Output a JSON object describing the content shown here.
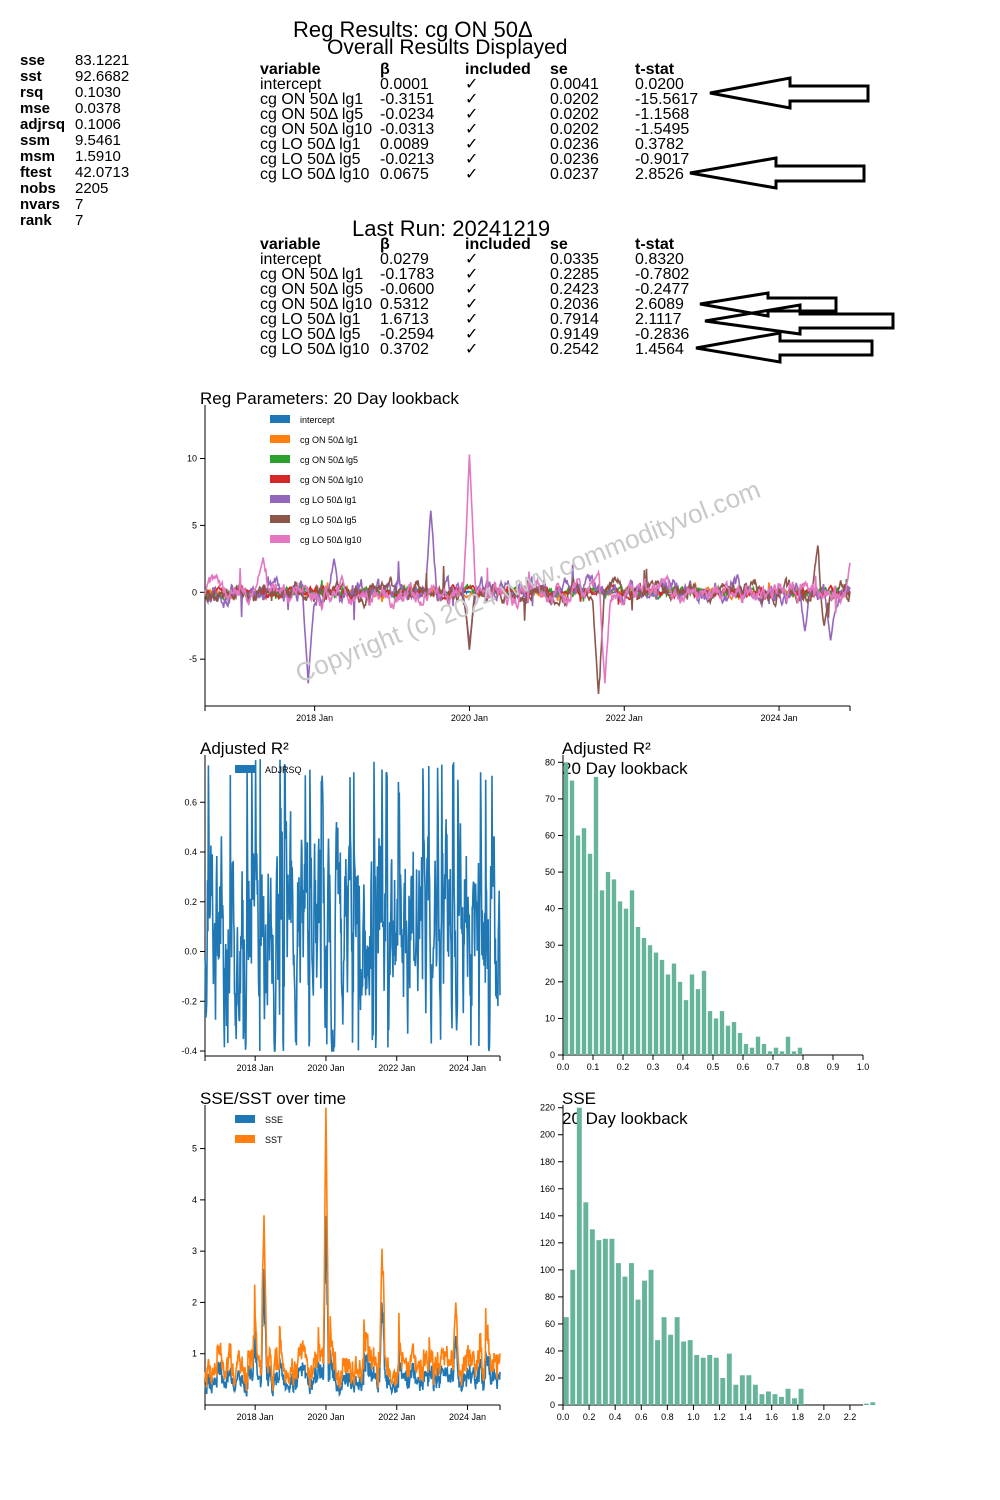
{
  "stats": [
    {
      "key": "sse",
      "value": "83.1221"
    },
    {
      "key": "sst",
      "value": "92.6682"
    },
    {
      "key": "rsq",
      "value": "0.1030"
    },
    {
      "key": "mse",
      "value": "0.0378"
    },
    {
      "key": "adjrsq",
      "value": "0.1006"
    },
    {
      "key": "ssm",
      "value": "9.5461"
    },
    {
      "key": "msm",
      "value": "1.5910"
    },
    {
      "key": "ftest",
      "value": "42.0713"
    },
    {
      "key": "nobs",
      "value": "2205"
    },
    {
      "key": "nvars",
      "value": "7"
    },
    {
      "key": "rank",
      "value": "7"
    }
  ],
  "header": {
    "title": "Reg Results: cg ON 50Δ",
    "subtitle": "Overall Results Displayed"
  },
  "columns": [
    "variable",
    "β",
    "included",
    "se",
    "t-stat"
  ],
  "overall_rows": [
    {
      "variable": "intercept",
      "beta": "0.0001",
      "included": "✓",
      "se": "0.0041",
      "tstat": "0.0200"
    },
    {
      "variable": "cg ON 50Δ lg1",
      "beta": "-0.3151",
      "included": "✓",
      "se": "0.0202",
      "tstat": "-15.5617"
    },
    {
      "variable": "cg ON 50Δ lg5",
      "beta": "-0.0234",
      "included": "✓",
      "se": "0.0202",
      "tstat": "-1.1568"
    },
    {
      "variable": "cg ON 50Δ lg10",
      "beta": "-0.0313",
      "included": "✓",
      "se": "0.0202",
      "tstat": "-1.5495"
    },
    {
      "variable": "cg LO 50Δ lg1",
      "beta": "0.0089",
      "included": "✓",
      "se": "0.0236",
      "tstat": "0.3782"
    },
    {
      "variable": "cg LO 50Δ lg5",
      "beta": "-0.0213",
      "included": "✓",
      "se": "0.0236",
      "tstat": "-0.9017"
    },
    {
      "variable": "cg LO 50Δ lg10",
      "beta": "0.0675",
      "included": "✓",
      "se": "0.0237",
      "tstat": "2.8526"
    }
  ],
  "last_run": {
    "title": "Last Run: 20241219",
    "rows": [
      {
        "variable": "intercept",
        "beta": "0.0279",
        "included": "✓",
        "se": "0.0335",
        "tstat": "0.8320"
      },
      {
        "variable": "cg ON 50Δ lg1",
        "beta": "-0.1783",
        "included": "✓",
        "se": "0.2285",
        "tstat": "-0.7802"
      },
      {
        "variable": "cg ON 50Δ lg5",
        "beta": "-0.0600",
        "included": "✓",
        "se": "0.2423",
        "tstat": "-0.2477"
      },
      {
        "variable": "cg ON 50Δ lg10",
        "beta": "0.5312",
        "included": "✓",
        "se": "0.2036",
        "tstat": "2.6089"
      },
      {
        "variable": "cg LO 50Δ lg1",
        "beta": "1.6713",
        "included": "✓",
        "se": "0.7914",
        "tstat": "2.1117"
      },
      {
        "variable": "cg LO 50Δ lg5",
        "beta": "-0.2594",
        "included": "✓",
        "se": "0.9149",
        "tstat": "-0.2836"
      },
      {
        "variable": "cg LO 50Δ lg10",
        "beta": "0.3702",
        "included": "✓",
        "se": "0.2542",
        "tstat": "1.4564"
      }
    ]
  },
  "watermark": "Copyright (c) 2024 www.commodityvol.com",
  "chart_data": [
    {
      "type": "line",
      "title": "Reg Parameters: 20 Day lookback",
      "xlabel": "",
      "ylabel": "",
      "x_range": [
        "2016-08",
        "2024-12"
      ],
      "ylim": [
        -8.5,
        14
      ],
      "yticks": [
        -5,
        0,
        5,
        10
      ],
      "xticks": [
        {
          "label": "2018 Jan",
          "t": "2018-01"
        },
        {
          "label": "2020 Jan",
          "t": "2020-01"
        },
        {
          "label": "2022 Jan",
          "t": "2022-01"
        },
        {
          "label": "2024 Jan",
          "t": "2024-01"
        }
      ],
      "legend": "top-left",
      "grid": false,
      "series": [
        {
          "name": "intercept",
          "color": "#1f77b4",
          "amp": 0.1
        },
        {
          "name": "cg ON 50Δ lg1",
          "color": "#ff7f0e",
          "amp": 0.35
        },
        {
          "name": "cg ON 50Δ lg5",
          "color": "#2ca02c",
          "amp": 0.45
        },
        {
          "name": "cg ON 50Δ lg10",
          "color": "#d62728",
          "amp": 0.45
        },
        {
          "name": "cg LO 50Δ lg1",
          "color": "#9467bd",
          "amp": 1.0,
          "spikes": [
            [
              "2017-12",
              -6.8
            ],
            [
              "2018-04",
              2.5
            ],
            [
              "2019-07",
              6.1
            ],
            [
              "2020-01",
              -3.8
            ],
            [
              "2024-05",
              -2.9
            ],
            [
              "2024-09",
              -3.6
            ]
          ]
        },
        {
          "name": "cg LO 50Δ lg5",
          "color": "#8c564b",
          "amp": 0.9,
          "spikes": [
            [
              "2020-01",
              -4.3
            ],
            [
              "2021-09",
              -7.6
            ],
            [
              "2024-07",
              3.5
            ],
            [
              "2024-08",
              -2.5
            ]
          ]
        },
        {
          "name": "cg LO 50Δ lg10",
          "color": "#e377c2",
          "amp": 1.0,
          "spikes": [
            [
              "2017-05",
              2.6
            ],
            [
              "2020-01",
              10.3
            ],
            [
              "2021-09",
              1.5
            ],
            [
              "2021-10",
              -6.8
            ],
            [
              "2024-12",
              2.2
            ]
          ]
        }
      ]
    },
    {
      "type": "line",
      "title": "Adjusted R²",
      "x_range": [
        "2016-08",
        "2024-12"
      ],
      "ylim": [
        -0.42,
        0.79
      ],
      "yticks": [
        -0.4,
        -0.2,
        0.0,
        0.2,
        0.4,
        0.6
      ],
      "xticks": [
        {
          "label": "2018 Jan",
          "t": "2018-01"
        },
        {
          "label": "2020 Jan",
          "t": "2020-01"
        },
        {
          "label": "2022 Jan",
          "t": "2022-01"
        },
        {
          "label": "2024 Jan",
          "t": "2024-01"
        }
      ],
      "legend": "top-left",
      "series": [
        {
          "name": "ADJRSQ",
          "color": "#1f77b4",
          "min": -0.4,
          "max": 0.78
        }
      ]
    },
    {
      "type": "bar",
      "title": "Adjusted R²",
      "subtitle": "20 Day lookback",
      "bin_width": 0.02,
      "x_start": 0.0,
      "xlim": [
        0,
        1.0
      ],
      "xticks": [
        0.0,
        0.1,
        0.2,
        0.3,
        0.4,
        0.5,
        0.6,
        0.7,
        0.8,
        0.9,
        1.0
      ],
      "ylim": [
        0,
        82
      ],
      "yticks": [
        0,
        10,
        20,
        30,
        40,
        50,
        60,
        70,
        80
      ],
      "color": "#66b59a",
      "values": [
        80,
        75,
        60,
        62,
        55,
        76,
        45,
        50,
        48,
        42,
        40,
        45,
        35,
        32,
        30,
        28,
        26,
        22,
        25,
        20,
        15,
        22,
        18,
        23,
        12,
        10,
        12,
        8,
        9,
        6,
        3,
        2,
        5,
        3,
        1,
        2,
        1,
        5,
        1,
        2
      ]
    },
    {
      "type": "line",
      "title": "SSE/SST over time",
      "x_range": [
        "2016-08",
        "2024-12"
      ],
      "ylim": [
        0,
        5.85
      ],
      "yticks": [
        1,
        2,
        3,
        4,
        5
      ],
      "xticks": [
        {
          "label": "2018 Jan",
          "t": "2018-01"
        },
        {
          "label": "2020 Jan",
          "t": "2020-01"
        },
        {
          "label": "2022 Jan",
          "t": "2022-01"
        },
        {
          "label": "2024 Jan",
          "t": "2024-01"
        }
      ],
      "legend": "top-left",
      "series": [
        {
          "name": "SSE",
          "color": "#1f77b4"
        },
        {
          "name": "SST",
          "color": "#ff7f0e",
          "spikes": [
            [
              "2018-04",
              3.7
            ],
            [
              "2020-01",
              5.8
            ],
            [
              "2021-08",
              3.05
            ],
            [
              "2023-09",
              2.0
            ]
          ]
        }
      ]
    },
    {
      "type": "bar",
      "title": "SSE",
      "subtitle": "20 Day lookback",
      "bin_width": 0.05,
      "x_start": 0.0,
      "xlim": [
        0,
        2.3
      ],
      "xticks": [
        0.0,
        0.2,
        0.4,
        0.6,
        0.8,
        1.0,
        1.2,
        1.4,
        1.6,
        1.8,
        2.0,
        2.2
      ],
      "ylim": [
        0,
        222
      ],
      "yticks": [
        0,
        20,
        40,
        60,
        80,
        100,
        120,
        140,
        160,
        180,
        200,
        220
      ],
      "color": "#66b59a",
      "values": [
        65,
        100,
        220,
        150,
        130,
        122,
        123,
        123,
        105,
        95,
        105,
        78,
        92,
        100,
        48,
        65,
        52,
        65,
        47,
        48,
        37,
        35,
        37,
        35,
        20,
        38,
        15,
        22,
        22,
        15,
        8,
        10,
        8,
        6,
        12,
        5,
        12,
        0,
        0,
        0,
        0,
        0,
        0,
        0,
        0,
        0,
        1,
        2
      ]
    }
  ]
}
